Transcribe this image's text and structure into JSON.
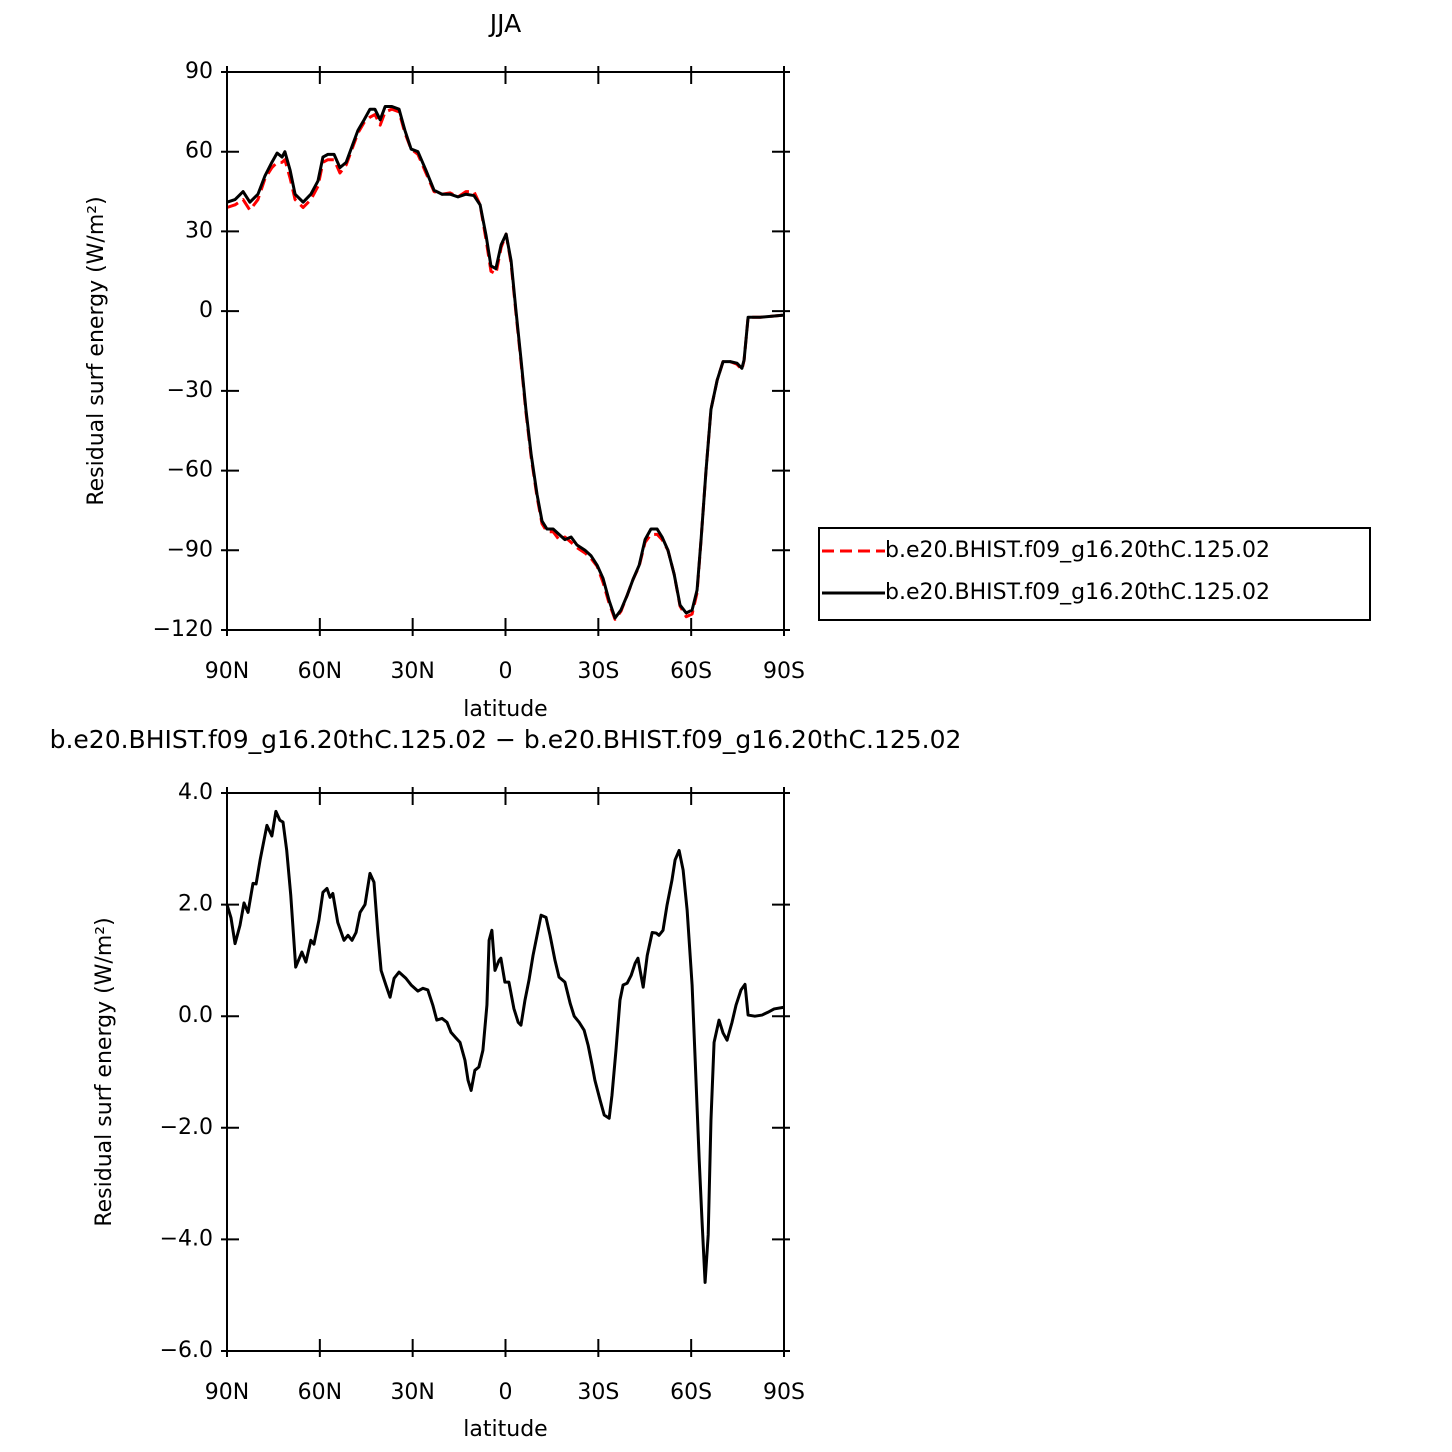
{
  "chart_data": [
    {
      "type": "line",
      "title": "JJA",
      "xlabel": "latitude",
      "ylabel": "Residual surf energy (W/m²)",
      "x": [
        90,
        87.4,
        84.8,
        82.6,
        80,
        77.7,
        75.5,
        73.8,
        72.2,
        71.3,
        69.6,
        68,
        65.4,
        62.9,
        60.6,
        59,
        57.4,
        55.4,
        53.5,
        51.5,
        49.6,
        47.7,
        45.7,
        43.8,
        42.2,
        40.5,
        38.9,
        36.7,
        34.4,
        32.5,
        30.5,
        28.3,
        25.7,
        23.1,
        20.5,
        17.9,
        15.3,
        12.8,
        10.2,
        8.2,
        6.3,
        4.7,
        3.1,
        1.4,
        -0.2,
        -1.8,
        -3.4,
        -5,
        -6.6,
        -8.3,
        -10.2,
        -11.8,
        -13.4,
        -15.4,
        -17.3,
        -19.2,
        -21.2,
        -23.1,
        -25.7,
        -27.6,
        -29.6,
        -31.5,
        -33.5,
        -35.4,
        -37.3,
        -39.3,
        -41.2,
        -43.2,
        -45.1,
        -47,
        -49,
        -50.6,
        -52.5,
        -54.5,
        -56.4,
        -58.4,
        -60.3,
        -61.9,
        -63.2,
        -64.8,
        -66.4,
        -68.4,
        -70.3,
        -72.6,
        -74.8,
        -76.4,
        -77.1,
        -78.4,
        -82.3,
        -90
      ],
      "series": [
        {
          "name": "b.e20.BHIST.f09_g16.20thC.125.02",
          "color": "#ff0000",
          "line_style": "dashed",
          "values": [
            39,
            40,
            42,
            38,
            42,
            50,
            54,
            56,
            56,
            57,
            50,
            42,
            39,
            42,
            47,
            56,
            57,
            57,
            52,
            55,
            61,
            67,
            71,
            73,
            74,
            70,
            75,
            76,
            75,
            67,
            61,
            59,
            52,
            45,
            44,
            44.5,
            43,
            45,
            45,
            40,
            27,
            15,
            14,
            24,
            29,
            18,
            -1,
            -19,
            -38,
            -55,
            -70,
            -80,
            -83,
            -83,
            -86,
            -85,
            -87,
            -89,
            -91,
            -93,
            -96,
            -102,
            -110,
            -116,
            -113,
            -107,
            -101,
            -96,
            -87,
            -84,
            -84,
            -86,
            -90,
            -99,
            -111,
            -115,
            -114,
            -106,
            -86,
            -60,
            -37,
            -26,
            -19,
            -19,
            -20,
            -22,
            -18.5,
            -2.3,
            -2.3,
            -1.5
          ]
        },
        {
          "name": "b.e20.BHIST.f09_g16.20thC.125.02",
          "color": "#000000",
          "line_style": "solid",
          "values": [
            41,
            42,
            45,
            41,
            44,
            51,
            56,
            59.5,
            58,
            60,
            53,
            44,
            41,
            44,
            49,
            58,
            59,
            59,
            54,
            56,
            62,
            68,
            72,
            76,
            76,
            72,
            77,
            77,
            76,
            68,
            61,
            60,
            53,
            45.5,
            44,
            44,
            43,
            44,
            43.5,
            40,
            28.6,
            17,
            16,
            25,
            29,
            19,
            0,
            -18,
            -37,
            -54,
            -69,
            -79,
            -82,
            -82,
            -84,
            -86,
            -85,
            -88,
            -90,
            -92,
            -95.6,
            -100.5,
            -109,
            -115.5,
            -112.5,
            -107,
            -101,
            -95.6,
            -86,
            -82,
            -82,
            -85,
            -90,
            -99,
            -110.6,
            -113.6,
            -112.5,
            -105,
            -86,
            -60,
            -37,
            -26,
            -19,
            -19,
            -19.6,
            -21.5,
            -18.4,
            -2.3,
            -2.3,
            -1.5
          ]
        }
      ],
      "xlim": [
        90,
        -90
      ],
      "xticks": [
        {
          "value": 90,
          "label": "90N"
        },
        {
          "value": 60,
          "label": "60N"
        },
        {
          "value": 30,
          "label": "30N"
        },
        0,
        {
          "value": -30,
          "label": "30S"
        },
        {
          "value": -60,
          "label": "60S"
        },
        {
          "value": -90,
          "label": "90S"
        }
      ],
      "ylim": [
        -120,
        90
      ],
      "yticks": [
        90,
        60,
        30,
        0,
        {
          "value": -30,
          "label": "−30"
        },
        {
          "value": -60,
          "label": "−60"
        },
        {
          "value": -90,
          "label": "−90"
        },
        {
          "value": -120,
          "label": "−120"
        }
      ],
      "legend": "right"
    },
    {
      "type": "line",
      "title": "b.e20.BHIST.f09_g16.20thC.125.02 − b.e20.BHIST.f09_g16.20thC.125.02",
      "xlabel": "latitude",
      "ylabel": "Residual surf energy (W/m²)",
      "x": [
        90,
        88.7,
        87.4,
        85.8,
        84.5,
        83.2,
        81.6,
        80.6,
        79.3,
        77.1,
        75.5,
        74.2,
        72.9,
        71.9,
        70.7,
        69.4,
        67.8,
        65.8,
        64.5,
        62.9,
        61.9,
        60.3,
        59.0,
        57.7,
        56.7,
        55.8,
        54.2,
        52.2,
        50.9,
        49.6,
        48.3,
        47.0,
        45.4,
        43.8,
        42.5,
        41.2,
        40.2,
        38.6,
        37.3,
        36.0,
        34.4,
        32.2,
        30.5,
        28.3,
        26.7,
        25.1,
        23.5,
        22.2,
        20.5,
        18.9,
        17.6,
        16.0,
        14.7,
        13.1,
        12.1,
        11.1,
        9.9,
        8.6,
        7.3,
        6.0,
        5.3,
        4.4,
        3.4,
        2.1,
        1.5,
        0.2,
        -1.1,
        -2.7,
        -4.1,
        -5.0,
        -6.3,
        -7.6,
        -8.9,
        -10.2,
        -11.5,
        -13.1,
        -14.4,
        -16.0,
        -17.3,
        -19.2,
        -20.9,
        -22.2,
        -23.8,
        -25.4,
        -26.7,
        -28.0,
        -28.9,
        -30.6,
        -31.9,
        -33.5,
        -34.4,
        -35.7,
        -37.0,
        -38.0,
        -39.3,
        -40.6,
        -41.9,
        -42.8,
        -43.5,
        -44.5,
        -45.8,
        -47.4,
        -48.7,
        -49.6,
        -50.9,
        -52.2,
        -53.8,
        -54.8,
        -56.1,
        -57.4,
        -58.7,
        -60.3,
        -61.3,
        -62.6,
        -63.5,
        -64.5,
        -65.5,
        -66.4,
        -67.4,
        -69.0,
        -70.3,
        -71.6,
        -73.2,
        -74.5,
        -76.1,
        -77.4,
        -78.4,
        -80.6,
        -82.9,
        -84.8,
        -86.8,
        -90
      ],
      "values": [
        2.0,
        1.76,
        1.3,
        1.63,
        2.03,
        1.86,
        2.38,
        2.37,
        2.8,
        3.42,
        3.23,
        3.67,
        3.51,
        3.48,
        2.97,
        2.17,
        0.88,
        1.15,
        0.97,
        1.36,
        1.29,
        1.72,
        2.22,
        2.29,
        2.13,
        2.2,
        1.68,
        1.36,
        1.45,
        1.36,
        1.5,
        1.86,
        2.0,
        2.56,
        2.4,
        1.45,
        0.82,
        0.55,
        0.34,
        0.68,
        0.79,
        0.68,
        0.56,
        0.45,
        0.5,
        0.47,
        0.2,
        -0.07,
        -0.04,
        -0.11,
        -0.29,
        -0.39,
        -0.47,
        -0.79,
        -1.15,
        -1.33,
        -0.97,
        -0.91,
        -0.61,
        0.2,
        1.36,
        1.54,
        0.82,
        1.0,
        1.04,
        0.61,
        0.61,
        0.14,
        -0.11,
        -0.16,
        0.29,
        0.65,
        1.09,
        1.45,
        1.81,
        1.77,
        1.45,
        1.0,
        0.7,
        0.61,
        0.23,
        0,
        -0.11,
        -0.25,
        -0.52,
        -0.88,
        -1.15,
        -1.51,
        -1.77,
        -1.83,
        -1.42,
        -0.61,
        0.29,
        0.56,
        0.59,
        0.73,
        0.95,
        1.04,
        0.82,
        0.52,
        1.09,
        1.5,
        1.49,
        1.45,
        1.54,
        1.99,
        2.44,
        2.8,
        2.97,
        2.62,
        1.9,
        0.56,
        -0.79,
        -2.58,
        -3.66,
        -4.77,
        -3.92,
        -1.86,
        -0.47,
        -0.07,
        -0.3,
        -0.43,
        -0.11,
        0.2,
        0.47,
        0.57,
        0.02,
        0,
        0.02,
        0.07,
        0.13,
        0.16
      ],
      "color": "#000000",
      "line_style": "solid",
      "xlim": [
        90,
        -90
      ],
      "xticks": [
        {
          "value": 90,
          "label": "90N"
        },
        {
          "value": 60,
          "label": "60N"
        },
        {
          "value": 30,
          "label": "30N"
        },
        0,
        {
          "value": -30,
          "label": "30S"
        },
        {
          "value": -60,
          "label": "60S"
        },
        {
          "value": -90,
          "label": "90S"
        }
      ],
      "ylim": [
        -6,
        4
      ],
      "yticks": [
        {
          "value": 4,
          "label": "4.0"
        },
        {
          "value": 2,
          "label": "2.0"
        },
        {
          "value": 0,
          "label": "0.0"
        },
        {
          "value": -2,
          "label": "−2.0"
        },
        {
          "value": -4,
          "label": "−4.0"
        },
        {
          "value": -6,
          "label": "−6.0"
        }
      ]
    }
  ]
}
